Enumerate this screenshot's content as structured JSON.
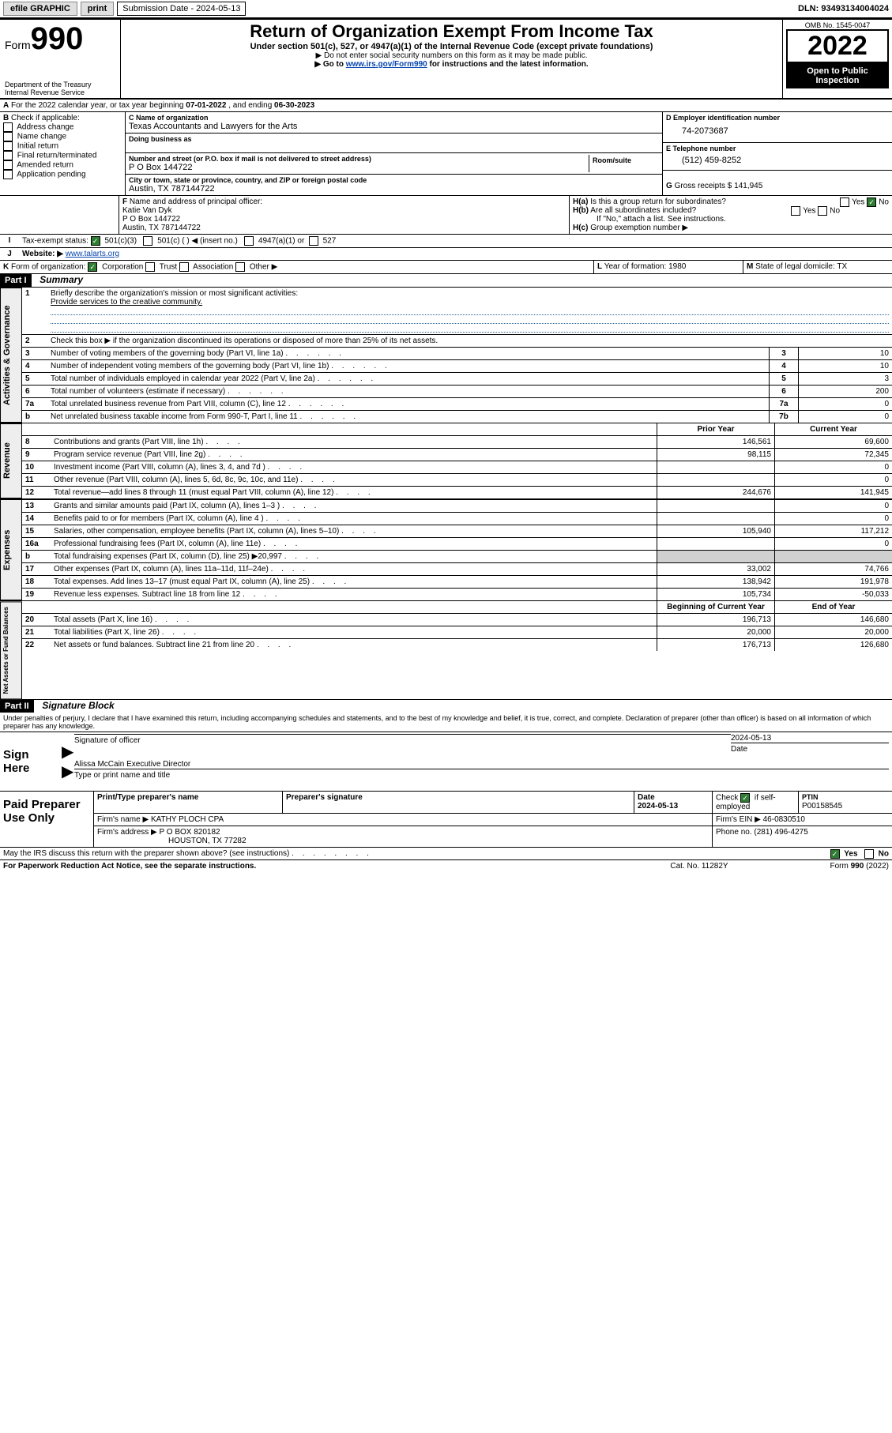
{
  "topbar": {
    "efile": "efile GRAPHIC",
    "print": "print",
    "sub_label": "Submission Date - 2024-05-13",
    "dln_label": "DLN: 93493134004024"
  },
  "header": {
    "form_prefix": "Form",
    "form_no": "990",
    "title": "Return of Organization Exempt From Income Tax",
    "subtitle": "Under section 501(c), 527, or 4947(a)(1) of the Internal Revenue Code (except private foundations)",
    "note1": "▶ Do not enter social security numbers on this form as it may be made public.",
    "note2_pre": "▶ Go to ",
    "note2_link": "www.irs.gov/Form990",
    "note2_post": " for instructions and the latest information.",
    "dept": "Department of the Treasury",
    "irs": "Internal Revenue Service",
    "omb": "OMB No. 1545-0047",
    "year": "2022",
    "open": "Open to Public Inspection"
  },
  "A": {
    "text_pre": "For the 2022 calendar year, or tax year beginning ",
    "beg": "07-01-2022",
    "mid": " , and ending ",
    "end": "06-30-2023"
  },
  "B": {
    "label": "Check if applicable:",
    "items": [
      "Address change",
      "Name change",
      "Initial return",
      "Final return/terminated",
      "Amended return",
      "Application pending"
    ]
  },
  "C": {
    "name_label": "Name of organization",
    "name": "Texas Accountants and Lawyers for the Arts",
    "dba_label": "Doing business as",
    "addr_label": "Number and street (or P.O. box if mail is not delivered to street address)",
    "room_label": "Room/suite",
    "addr": "P O Box 144722",
    "city_label": "City or town, state or province, country, and ZIP or foreign postal code",
    "city": "Austin, TX  787144722"
  },
  "D": {
    "label": "Employer identification number",
    "val": "74-2073687"
  },
  "E": {
    "label": "Telephone number",
    "val": "(512) 459-8252"
  },
  "G": {
    "label": "Gross receipts $",
    "val": "141,945"
  },
  "F": {
    "label": "Name and address of principal officer:",
    "name": "Katie Van Dyk",
    "addr1": "P O Box 144722",
    "addr2": "Austin, TX  787144722"
  },
  "H": {
    "a": "Is this a group return for subordinates?",
    "a_yes": "Yes",
    "a_no": "No",
    "b": "Are all subordinates included?",
    "b_note": "If \"No,\" attach a list. See instructions.",
    "c": "Group exemption number ▶"
  },
  "I": {
    "label": "Tax-exempt status:",
    "c3": "501(c)(3)",
    "c": "501(c) (   ) ◀ (insert no.)",
    "a1": "4947(a)(1) or",
    "s527": "527"
  },
  "J": {
    "label": "Website: ▶",
    "val": "www.talarts.org"
  },
  "K": {
    "label": "Form of organization:",
    "corp": "Corporation",
    "trust": "Trust",
    "assoc": "Association",
    "other": "Other ▶"
  },
  "L": {
    "label": "Year of formation:",
    "val": "1980"
  },
  "M": {
    "label": "State of legal domicile:",
    "val": "TX"
  },
  "part1": {
    "bar": "Part I",
    "title": "Summary",
    "q1": "Briefly describe the organization's mission or most significant activities:",
    "q1a": "Provide services to the creative community.",
    "q2": "Check this box ▶         if the organization discontinued its operations or disposed of more than 25% of its net assets.",
    "rows_gov": [
      {
        "n": "3",
        "t": "Number of voting members of the governing body (Part VI, line 1a)",
        "box": "3",
        "v": "10"
      },
      {
        "n": "4",
        "t": "Number of independent voting members of the governing body (Part VI, line 1b)",
        "box": "4",
        "v": "10"
      },
      {
        "n": "5",
        "t": "Total number of individuals employed in calendar year 2022 (Part V, line 2a)",
        "box": "5",
        "v": "3"
      },
      {
        "n": "6",
        "t": "Total number of volunteers (estimate if necessary)",
        "box": "6",
        "v": "200"
      },
      {
        "n": "7a",
        "t": "Total unrelated business revenue from Part VIII, column (C), line 12",
        "box": "7a",
        "v": "0"
      },
      {
        "n": "b",
        "t": "Net unrelated business taxable income from Form 990-T, Part I, line 11",
        "box": "7b",
        "v": "0"
      }
    ],
    "hdr_prior": "Prior Year",
    "hdr_cur": "Current Year",
    "rev": [
      {
        "n": "8",
        "t": "Contributions and grants (Part VIII, line 1h)",
        "p": "146,561",
        "c": "69,600"
      },
      {
        "n": "9",
        "t": "Program service revenue (Part VIII, line 2g)",
        "p": "98,115",
        "c": "72,345"
      },
      {
        "n": "10",
        "t": "Investment income (Part VIII, column (A), lines 3, 4, and 7d )",
        "p": "",
        "c": "0"
      },
      {
        "n": "11",
        "t": "Other revenue (Part VIII, column (A), lines 5, 6d, 8c, 9c, 10c, and 11e)",
        "p": "",
        "c": "0"
      },
      {
        "n": "12",
        "t": "Total revenue—add lines 8 through 11 (must equal Part VIII, column (A), line 12)",
        "p": "244,676",
        "c": "141,945"
      }
    ],
    "exp": [
      {
        "n": "13",
        "t": "Grants and similar amounts paid (Part IX, column (A), lines 1–3 )",
        "p": "",
        "c": "0"
      },
      {
        "n": "14",
        "t": "Benefits paid to or for members (Part IX, column (A), line 4 )",
        "p": "",
        "c": "0"
      },
      {
        "n": "15",
        "t": "Salaries, other compensation, employee benefits (Part IX, column (A), lines 5–10)",
        "p": "105,940",
        "c": "117,212"
      },
      {
        "n": "16a",
        "t": "Professional fundraising fees (Part IX, column (A), line 11e)",
        "p": "",
        "c": "0"
      },
      {
        "n": "b",
        "t": "Total fundraising expenses (Part IX, column (D), line 25) ▶20,997",
        "p": "__SHADE__",
        "c": "__SHADE__"
      },
      {
        "n": "17",
        "t": "Other expenses (Part IX, column (A), lines 11a–11d, 11f–24e)",
        "p": "33,002",
        "c": "74,766"
      },
      {
        "n": "18",
        "t": "Total expenses. Add lines 13–17 (must equal Part IX, column (A), line 25)",
        "p": "138,942",
        "c": "191,978"
      },
      {
        "n": "19",
        "t": "Revenue less expenses. Subtract line 18 from line 12",
        "p": "105,734",
        "c": "-50,033"
      }
    ],
    "hdr_bcy": "Beginning of Current Year",
    "hdr_eoy": "End of Year",
    "net": [
      {
        "n": "20",
        "t": "Total assets (Part X, line 16)",
        "p": "196,713",
        "c": "146,680"
      },
      {
        "n": "21",
        "t": "Total liabilities (Part X, line 26)",
        "p": "20,000",
        "c": "20,000"
      },
      {
        "n": "22",
        "t": "Net assets or fund balances. Subtract line 21 from line 20",
        "p": "176,713",
        "c": "126,680"
      }
    ],
    "tab_gov": "Activities & Governance",
    "tab_rev": "Revenue",
    "tab_exp": "Expenses",
    "tab_net": "Net Assets or Fund Balances"
  },
  "part2": {
    "bar": "Part II",
    "title": "Signature Block",
    "decl": "Under penalties of perjury, I declare that I have examined this return, including accompanying schedules and statements, and to the best of my knowledge and belief, it is true, correct, and complete. Declaration of preparer (other than officer) is based on all information of which preparer has any knowledge.",
    "sign_here": "Sign Here",
    "sig_off_label": "Signature of officer",
    "date_label": "Date",
    "date": "2024-05-13",
    "officer": "Alissa McCain  Executive Director",
    "type_label": "Type or print name and title",
    "paid": "Paid Preparer Use Only",
    "pt_name_label": "Print/Type preparer's name",
    "pt_sig_label": "Preparer's signature",
    "pt_date_label": "Date",
    "pt_date": "2024-05-13",
    "check_label": "Check",
    "self_emp": "if self-employed",
    "ptin_label": "PTIN",
    "ptin": "P00158545",
    "firm_name_label": "Firm's name   ▶",
    "firm_name": "KATHY PLOCH CPA",
    "firm_ein_label": "Firm's EIN ▶",
    "firm_ein": "46-0830510",
    "firm_addr_label": "Firm's address ▶",
    "firm_addr1": "P O BOX 820182",
    "firm_addr2": "HOUSTON, TX  77282",
    "phone_label": "Phone no.",
    "phone": "(281) 496-4275",
    "discuss": "May the IRS discuss this return with the preparer shown above? (see instructions)",
    "discuss_yes": "Yes",
    "discuss_no": "No"
  },
  "footer": {
    "pra": "For Paperwork Reduction Act Notice, see the separate instructions.",
    "cat": "Cat. No. 11282Y",
    "form": "Form 990 (2022)"
  },
  "colors": {
    "link": "#0645ad",
    "checked": "#2e7d32"
  }
}
